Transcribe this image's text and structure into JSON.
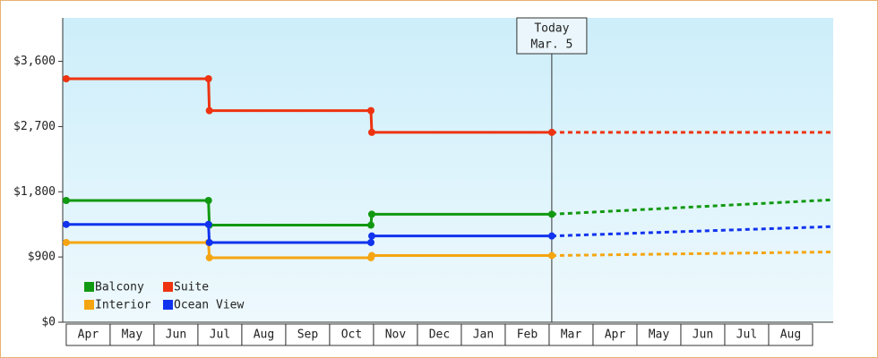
{
  "chart_data": {
    "type": "line",
    "categories": [
      "Apr",
      "May",
      "Jun",
      "Jul",
      "Aug",
      "Sep",
      "Oct",
      "Nov",
      "Dec",
      "Jan",
      "Feb",
      "Mar",
      "Apr",
      "May",
      "Jun",
      "Jul",
      "Aug"
    ],
    "xlim": [
      -0.08,
      17.47
    ],
    "ylim": [
      0,
      4200
    ],
    "yticks": [
      {
        "value": 0,
        "label": "$0"
      },
      {
        "value": 900,
        "label": "$900"
      },
      {
        "value": 1800,
        "label": "$1,800"
      },
      {
        "value": 2700,
        "label": "$2,700"
      },
      {
        "value": 3600,
        "label": "$3,600"
      }
    ],
    "grid": false,
    "legend": "bottom-left",
    "today": {
      "label": [
        "Today",
        "Mar. 5"
      ],
      "x": 11.06
    },
    "series": [
      {
        "name": "Balcony",
        "color": "#119911",
        "x": [
          0,
          3.24,
          3.26,
          6.94,
          6.96,
          11.06
        ],
        "values": [
          1680,
          1680,
          1340,
          1340,
          1490,
          1490
        ],
        "projection": {
          "x": [
            11.06,
            17.47
          ],
          "values": [
            1490,
            1690
          ]
        }
      },
      {
        "name": "Suite",
        "color": "#ee3311",
        "x": [
          0,
          3.24,
          3.26,
          6.94,
          6.96,
          11.06
        ],
        "values": [
          3360,
          3360,
          2920,
          2920,
          2620,
          2620
        ],
        "projection": {
          "x": [
            11.06,
            17.47
          ],
          "values": [
            2620,
            2620
          ]
        }
      },
      {
        "name": "Interior",
        "color": "#f5a511",
        "x": [
          0,
          3.24,
          3.26,
          6.94,
          6.96,
          11.06
        ],
        "values": [
          1100,
          1100,
          890,
          890,
          920,
          920
        ],
        "projection": {
          "x": [
            11.06,
            17.47
          ],
          "values": [
            920,
            970
          ]
        }
      },
      {
        "name": "Ocean View",
        "color": "#1133ee",
        "x": [
          0,
          3.24,
          3.26,
          6.94,
          6.96,
          11.06
        ],
        "values": [
          1350,
          1350,
          1100,
          1100,
          1190,
          1190
        ],
        "projection": {
          "x": [
            11.06,
            17.47
          ],
          "values": [
            1190,
            1320
          ]
        }
      }
    ]
  }
}
